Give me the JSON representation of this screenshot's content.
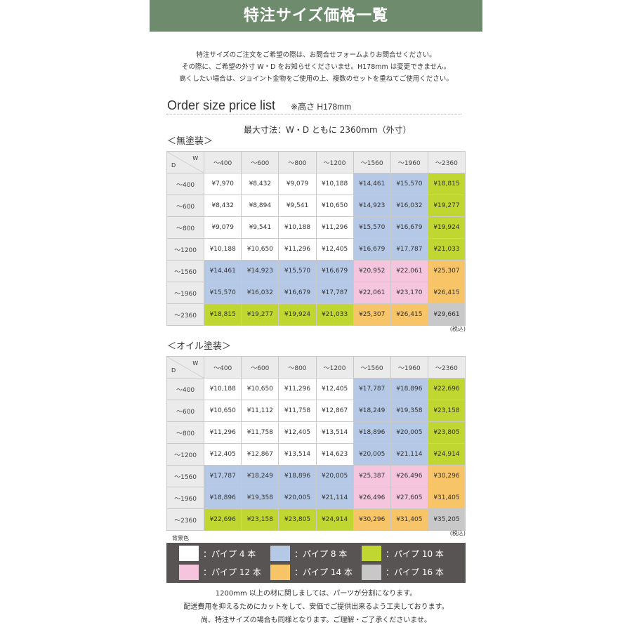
{
  "header": {
    "title": "特注サイズ価格一覧"
  },
  "intro": [
    "特注サイズのご注文をご希望の際は、お問合せフォームよりお問合せください。",
    "その際に、ご希望の外寸 W・D をお知らせくださいませ。H178mm は変更できません。",
    "高くしたい場合は、ジョイント金物をご使用の上、複数のセットを重ねてご使用ください。"
  ],
  "order_title": "Order size price list",
  "height_note": "※高さ H178mm",
  "max_dim": "最大寸法：W・D ともに 2360mm（外寸）",
  "corner": {
    "w": "W",
    "d": "D"
  },
  "col_headers": [
    "～400",
    "～600",
    "～800",
    "～1200",
    "～1560",
    "～1960",
    "～2360"
  ],
  "row_headers": [
    "～400",
    "～600",
    "～800",
    "～1200",
    "～1560",
    "～1960",
    "～2360"
  ],
  "tax_note": "(税込)",
  "tables": [
    {
      "title": "＜無塗装＞",
      "rows": [
        [
          "¥7,970",
          "¥8,432",
          "¥9,079",
          "¥10,188",
          "¥14,461",
          "¥15,570",
          "¥18,815"
        ],
        [
          "¥8,432",
          "¥8,894",
          "¥9,541",
          "¥10,650",
          "¥14,923",
          "¥16,032",
          "¥19,277"
        ],
        [
          "¥9,079",
          "¥9,541",
          "¥10,188",
          "¥11,296",
          "¥15,570",
          "¥16,679",
          "¥19,924"
        ],
        [
          "¥10,188",
          "¥10,650",
          "¥11,296",
          "¥12,405",
          "¥16,679",
          "¥17,787",
          "¥21,033"
        ],
        [
          "¥14,461",
          "¥14,923",
          "¥15,570",
          "¥16,679",
          "¥20,952",
          "¥22,061",
          "¥25,307"
        ],
        [
          "¥15,570",
          "¥16,032",
          "¥16,679",
          "¥17,787",
          "¥22,061",
          "¥23,170",
          "¥26,415"
        ],
        [
          "¥18,815",
          "¥19,277",
          "¥19,924",
          "¥21,033",
          "¥25,307",
          "¥26,415",
          "¥29,661"
        ]
      ]
    },
    {
      "title": "＜オイル塗装＞",
      "rows": [
        [
          "¥10,188",
          "¥10,650",
          "¥11,296",
          "¥12,405",
          "¥17,787",
          "¥18,896",
          "¥22,696"
        ],
        [
          "¥10,650",
          "¥11,112",
          "¥11,758",
          "¥12,867",
          "¥18,249",
          "¥19,358",
          "¥23,158"
        ],
        [
          "¥11,296",
          "¥11,758",
          "¥12,405",
          "¥13,514",
          "¥18,896",
          "¥20,005",
          "¥23,805"
        ],
        [
          "¥12,405",
          "¥12,867",
          "¥13,514",
          "¥14,623",
          "¥20,005",
          "¥21,114",
          "¥24,914"
        ],
        [
          "¥17,787",
          "¥18,249",
          "¥18,896",
          "¥20,005",
          "¥25,387",
          "¥26,496",
          "¥30,296"
        ],
        [
          "¥18,896",
          "¥19,358",
          "¥20,005",
          "¥21,114",
          "¥26,496",
          "¥27,605",
          "¥31,405"
        ],
        [
          "¥22,696",
          "¥23,158",
          "¥23,805",
          "¥24,914",
          "¥30,296",
          "¥31,405",
          "¥35,205"
        ]
      ]
    }
  ],
  "cell_pipe_type": [
    [
      0,
      0,
      0,
      0,
      1,
      1,
      2
    ],
    [
      0,
      0,
      0,
      0,
      1,
      1,
      2
    ],
    [
      0,
      0,
      0,
      0,
      1,
      1,
      2
    ],
    [
      0,
      0,
      0,
      0,
      1,
      1,
      2
    ],
    [
      1,
      1,
      1,
      1,
      3,
      3,
      4
    ],
    [
      1,
      1,
      1,
      1,
      3,
      3,
      4
    ],
    [
      2,
      2,
      2,
      2,
      4,
      4,
      5
    ]
  ],
  "legend_label": "背景色",
  "legend": [
    {
      "label": "：パイプ 4 本",
      "color": "#ffffff"
    },
    {
      "label": "：パイプ 8 本",
      "color": "#b5c8e6"
    },
    {
      "label": "：パイプ 10 本",
      "color": "#bfd730"
    },
    {
      "label": "：パイプ 12 本",
      "color": "#f4c5dc"
    },
    {
      "label": "：パイプ 14 本",
      "color": "#f7c467"
    },
    {
      "label": "：パイプ 16 本",
      "color": "#c8c8c8"
    }
  ],
  "footer": [
    "1200mm 以上の材に関しましては、パーツが分割になります。",
    "配送費用を抑えるためにカットをして、安価でご提供出来るよう工夫しております。",
    "尚、特注サイズの場合も同様となります。ご理解・ご了承くださいませ。"
  ]
}
